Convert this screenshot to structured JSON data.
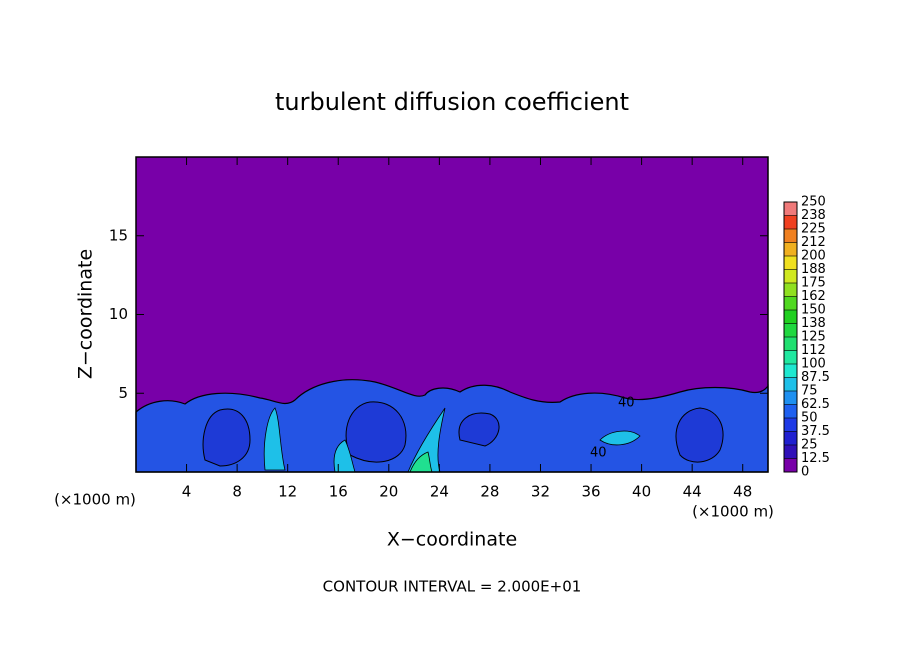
{
  "chart_data": {
    "type": "contour",
    "title": "turbulent diffusion coefficient",
    "xlabel": "X−coordinate",
    "ylabel": "Z−coordinate",
    "xunit": "(×1000 m)",
    "yunit": "(×1000 m)",
    "footer": "CONTOUR INTERVAL = 2.000E+01",
    "xlim": [
      0,
      50
    ],
    "ylim": [
      0,
      20
    ],
    "xticks": [
      4,
      8,
      12,
      16,
      20,
      24,
      28,
      32,
      36,
      40,
      44,
      48
    ],
    "yticks": [
      5,
      10,
      15
    ],
    "background_color": "#7800a8",
    "contour_labels": [
      {
        "text": "40"
      },
      {
        "text": "40"
      }
    ],
    "colorbar": {
      "levels": [
        0,
        12.5,
        25,
        37.5,
        50,
        62.5,
        75,
        87.5,
        100,
        112,
        125,
        138,
        150,
        162,
        175,
        188,
        200,
        212,
        225,
        238,
        250
      ],
      "colors": [
        "#7800a8",
        "#3010b8",
        "#2020d0",
        "#1e3ae6",
        "#1e60f0",
        "#1e90f0",
        "#1ec0e8",
        "#1ee8d0",
        "#20e8a0",
        "#20e070",
        "#20d840",
        "#20d020",
        "#50d820",
        "#90e020",
        "#d0e820",
        "#f0e020",
        "#f0b020",
        "#f08020",
        "#f04020",
        "#f02020"
      ],
      "top_color": "#f07a7a"
    }
  }
}
